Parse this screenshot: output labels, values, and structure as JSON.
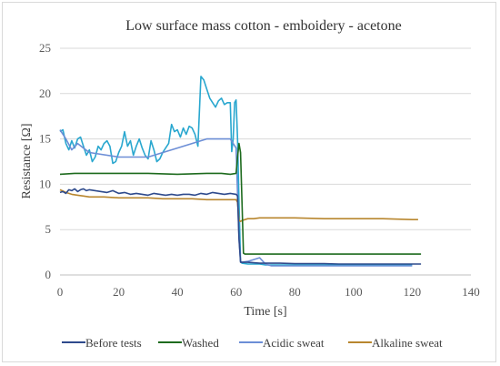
{
  "chart_data": {
    "type": "line",
    "title": "Low surface mass cotton - emboidery - acetone",
    "xlabel": "Time [s]",
    "ylabel": "Resistance [Ω]",
    "xlim": [
      0,
      140
    ],
    "ylim": [
      0,
      25
    ],
    "xticks": [
      0,
      20,
      40,
      60,
      80,
      100,
      120,
      140
    ],
    "yticks": [
      0,
      5,
      10,
      15,
      20,
      25
    ],
    "grid": "horizontal",
    "legend_position": "bottom",
    "series": [
      {
        "name": "Before tests",
        "color": "#2e4a8c",
        "x": [
          0,
          1,
          2,
          3,
          4,
          5,
          6,
          7,
          8,
          9,
          10,
          12,
          14,
          16,
          18,
          20,
          22,
          24,
          26,
          28,
          30,
          32,
          34,
          36,
          38,
          40,
          42,
          44,
          46,
          48,
          50,
          52,
          54,
          56,
          58,
          60,
          60.5,
          61,
          61.5,
          62,
          64,
          66,
          68,
          70,
          72,
          75,
          80,
          85,
          90,
          95,
          100,
          105,
          110,
          115,
          120,
          123
        ],
        "y": [
          9.1,
          9.2,
          9.0,
          9.4,
          9.3,
          9.5,
          9.2,
          9.4,
          9.5,
          9.3,
          9.4,
          9.3,
          9.2,
          9.1,
          9.3,
          9.0,
          9.1,
          8.9,
          9.0,
          8.9,
          8.8,
          9.0,
          8.9,
          8.8,
          8.9,
          8.8,
          8.9,
          8.9,
          8.8,
          9.0,
          8.9,
          9.1,
          9.0,
          8.9,
          9.0,
          8.9,
          8.7,
          4.0,
          1.4,
          1.4,
          1.4,
          1.35,
          1.3,
          1.3,
          1.3,
          1.3,
          1.25,
          1.25,
          1.25,
          1.2,
          1.2,
          1.2,
          1.2,
          1.2,
          1.2,
          1.2
        ]
      },
      {
        "name": "Washed",
        "color": "#1e6b1e",
        "x": [
          0,
          5,
          10,
          20,
          30,
          40,
          50,
          55,
          58,
          60,
          60.5,
          61,
          61.5,
          62,
          62.5,
          63,
          65,
          70,
          80,
          90,
          100,
          110,
          120,
          123
        ],
        "y": [
          11.1,
          11.2,
          11.2,
          11.2,
          11.2,
          11.1,
          11.2,
          11.2,
          11.1,
          11.2,
          13.0,
          14.5,
          13.5,
          8.0,
          2.4,
          2.3,
          2.3,
          2.3,
          2.3,
          2.3,
          2.3,
          2.3,
          2.3,
          2.3
        ]
      },
      {
        "name": "Acidic sweat",
        "color": "#6c8ed6",
        "x": [
          0,
          2,
          4,
          6,
          8,
          10,
          20,
          30,
          40,
          50,
          58,
          60,
          60.5,
          61,
          61.5,
          62,
          64,
          66,
          68,
          70,
          72,
          75,
          80,
          90,
          100,
          110,
          120
        ],
        "y": [
          16.0,
          15.0,
          13.8,
          14.5,
          14.0,
          13.5,
          13.0,
          13.0,
          14.0,
          15.0,
          15.0,
          14.0,
          9.0,
          4.0,
          1.5,
          1.4,
          1.5,
          1.7,
          1.9,
          1.2,
          1.0,
          1.0,
          1.0,
          1.0,
          1.0,
          1.0,
          1.0
        ]
      },
      {
        "name": "",
        "color": "#29a7cf",
        "x": [
          0,
          1,
          2,
          3,
          4,
          5,
          6,
          7,
          8,
          9,
          10,
          11,
          12,
          13,
          14,
          15,
          16,
          17,
          18,
          19,
          20,
          21,
          22,
          23,
          24,
          25,
          26,
          27,
          28,
          29,
          30,
          31,
          32,
          33,
          34,
          35,
          36,
          37,
          38,
          39,
          40,
          41,
          42,
          43,
          44,
          45,
          46,
          47,
          48,
          49,
          50,
          51,
          52,
          53,
          54,
          55,
          56,
          57,
          58,
          58.5,
          59,
          59.5,
          60,
          60.5,
          61,
          61.5,
          62,
          64,
          66,
          68,
          70,
          72,
          75,
          80,
          90,
          100,
          110,
          120
        ],
        "y": [
          15.8,
          16.0,
          14.5,
          13.8,
          14.8,
          14.0,
          15.0,
          15.2,
          14.2,
          13.2,
          13.8,
          12.5,
          13.0,
          14.2,
          13.8,
          14.5,
          14.8,
          14.2,
          12.3,
          12.5,
          13.5,
          14.2,
          15.8,
          14.2,
          14.8,
          13.2,
          14.2,
          15.0,
          14.0,
          13.2,
          12.8,
          14.8,
          13.8,
          12.5,
          12.8,
          13.5,
          14.0,
          14.5,
          16.6,
          15.8,
          16.0,
          15.2,
          16.2,
          15.5,
          16.4,
          16.2,
          15.5,
          14.2,
          21.9,
          21.5,
          20.5,
          19.5,
          19.0,
          18.5,
          19.2,
          19.5,
          18.8,
          19.0,
          19.0,
          13.6,
          15.0,
          19.0,
          19.3,
          15.0,
          8.0,
          1.5,
          1.3,
          1.2,
          1.2,
          1.2,
          1.1,
          1.1,
          1.1,
          1.1,
          1.1,
          1.1,
          1.1,
          1.1
        ]
      },
      {
        "name": "Alkaline sweat",
        "color": "#b8862e",
        "x": [
          0,
          2,
          4,
          6,
          8,
          10,
          15,
          20,
          25,
          30,
          35,
          40,
          45,
          50,
          55,
          58,
          60,
          60.5,
          61,
          61.5,
          62,
          63,
          64,
          66,
          68,
          70,
          80,
          90,
          100,
          110,
          120,
          122
        ],
        "y": [
          9.4,
          9.1,
          8.9,
          8.8,
          8.7,
          8.6,
          8.6,
          8.5,
          8.5,
          8.5,
          8.4,
          8.4,
          8.4,
          8.3,
          8.3,
          8.3,
          8.3,
          8.0,
          6.0,
          5.9,
          6.0,
          6.1,
          6.2,
          6.2,
          6.3,
          6.3,
          6.3,
          6.2,
          6.2,
          6.2,
          6.1,
          6.1
        ]
      }
    ]
  }
}
